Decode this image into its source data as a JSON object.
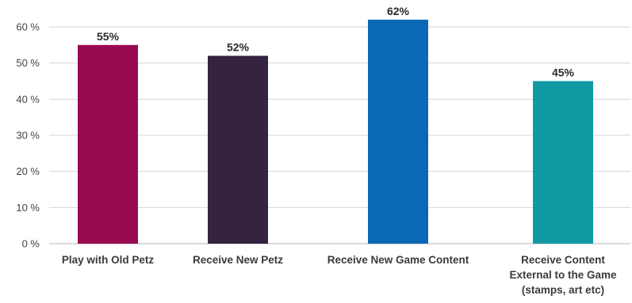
{
  "chart_data": {
    "type": "bar",
    "categories": [
      [
        "Play with Old Petz"
      ],
      [
        "Receive New Petz"
      ],
      [
        "Receive New Game Content"
      ],
      [
        "Receive Content",
        "External to the Game",
        "(stamps, art etc)"
      ]
    ],
    "values": [
      55,
      52,
      62,
      45
    ],
    "value_labels": [
      "55%",
      "52%",
      "62%",
      "45%"
    ],
    "colors": [
      "#9a0a52",
      "#352340",
      "#0a68b4",
      "#129aa4"
    ],
    "y_ticks": [
      "0 %",
      "10 %",
      "20 %",
      "30 %",
      "40 %",
      "50 %",
      "60 %"
    ],
    "ylim": [
      0,
      60
    ],
    "title": "",
    "xlabel": "",
    "ylabel": "",
    "grid": true,
    "legend": false
  }
}
